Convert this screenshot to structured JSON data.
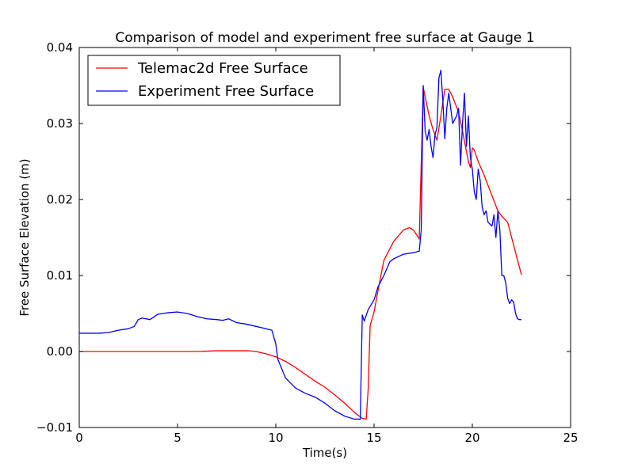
{
  "chart_data": {
    "type": "line",
    "title": "Comparison of model and experiment free surface at Gauge 1",
    "xlabel": "Time(s)",
    "ylabel": "Free Surface Elevation (m)",
    "xlim": [
      0,
      25
    ],
    "ylim": [
      -0.01,
      0.04
    ],
    "x_ticks": [
      0,
      5,
      10,
      15,
      20,
      25
    ],
    "x_tick_labels": [
      "0",
      "5",
      "10",
      "15",
      "20",
      "25"
    ],
    "y_ticks": [
      -0.01,
      0.0,
      0.01,
      0.02,
      0.03,
      0.04
    ],
    "y_tick_labels": [
      "−0.01",
      "0.00",
      "0.01",
      "0.02",
      "0.03",
      "0.04"
    ],
    "grid": false,
    "legend_position": "top-left",
    "series": [
      {
        "name": "Telemac2d Free Surface",
        "color": "#ff0000",
        "points": [
          [
            0.0,
            0.0
          ],
          [
            2.0,
            0.0
          ],
          [
            4.0,
            0.0
          ],
          [
            6.0,
            0.0
          ],
          [
            7.0,
            0.0001
          ],
          [
            8.0,
            0.0001
          ],
          [
            8.6,
            0.0001
          ],
          [
            9.0,
            0.0
          ],
          [
            9.5,
            -0.0003
          ],
          [
            10.0,
            -0.0007
          ],
          [
            10.5,
            -0.0013
          ],
          [
            11.0,
            -0.0021
          ],
          [
            11.5,
            -0.003
          ],
          [
            12.0,
            -0.0039
          ],
          [
            12.5,
            -0.0047
          ],
          [
            13.0,
            -0.0057
          ],
          [
            13.5,
            -0.0068
          ],
          [
            14.0,
            -0.008
          ],
          [
            14.4,
            -0.0088
          ],
          [
            14.6,
            -0.0089
          ],
          [
            14.7,
            -0.005
          ],
          [
            14.8,
            0.0034
          ],
          [
            15.0,
            0.0052
          ],
          [
            15.2,
            0.008
          ],
          [
            15.5,
            0.012
          ],
          [
            16.0,
            0.0145
          ],
          [
            16.5,
            0.016
          ],
          [
            16.8,
            0.0163
          ],
          [
            17.0,
            0.016
          ],
          [
            17.3,
            0.0148
          ],
          [
            17.5,
            0.0348
          ],
          [
            17.8,
            0.031
          ],
          [
            18.0,
            0.0292
          ],
          [
            18.2,
            0.0278
          ],
          [
            18.4,
            0.031
          ],
          [
            18.6,
            0.0345
          ],
          [
            18.8,
            0.0345
          ],
          [
            19.0,
            0.0335
          ],
          [
            19.3,
            0.0315
          ],
          [
            19.5,
            0.029
          ],
          [
            19.8,
            0.025
          ],
          [
            19.9,
            0.0242
          ],
          [
            20.0,
            0.0268
          ],
          [
            20.1,
            0.0265
          ],
          [
            20.3,
            0.025
          ],
          [
            20.6,
            0.0232
          ],
          [
            21.0,
            0.0205
          ],
          [
            21.3,
            0.0185
          ],
          [
            21.5,
            0.0178
          ],
          [
            21.8,
            0.017
          ],
          [
            22.0,
            0.015
          ],
          [
            22.2,
            0.013
          ],
          [
            22.5,
            0.0101
          ]
        ]
      },
      {
        "name": "Experiment Free Surface",
        "color": "#0000ff",
        "points": [
          [
            0.0,
            0.0024
          ],
          [
            1.0,
            0.0024
          ],
          [
            1.5,
            0.0025
          ],
          [
            2.0,
            0.0028
          ],
          [
            2.5,
            0.003
          ],
          [
            2.8,
            0.0033
          ],
          [
            3.0,
            0.0042
          ],
          [
            3.2,
            0.0044
          ],
          [
            3.6,
            0.0042
          ],
          [
            4.0,
            0.0049
          ],
          [
            4.5,
            0.0051
          ],
          [
            5.0,
            0.0052
          ],
          [
            5.5,
            0.005
          ],
          [
            6.0,
            0.0046
          ],
          [
            6.5,
            0.0043
          ],
          [
            7.0,
            0.0042
          ],
          [
            7.3,
            0.0041
          ],
          [
            7.6,
            0.0043
          ],
          [
            8.0,
            0.0038
          ],
          [
            8.5,
            0.0036
          ],
          [
            9.0,
            0.0033
          ],
          [
            9.5,
            0.003
          ],
          [
            9.8,
            0.0028
          ],
          [
            10.0,
            0.001
          ],
          [
            10.1,
            -0.001
          ],
          [
            10.5,
            -0.0035
          ],
          [
            11.0,
            -0.0048
          ],
          [
            11.5,
            -0.0055
          ],
          [
            12.0,
            -0.006
          ],
          [
            12.5,
            -0.0068
          ],
          [
            13.0,
            -0.0078
          ],
          [
            13.5,
            -0.0085
          ],
          [
            14.0,
            -0.0089
          ],
          [
            14.3,
            -0.0089
          ],
          [
            14.4,
            0.0048
          ],
          [
            14.5,
            0.004
          ],
          [
            14.7,
            0.0055
          ],
          [
            15.0,
            0.0068
          ],
          [
            15.2,
            0.0085
          ],
          [
            15.5,
            0.01
          ],
          [
            15.8,
            0.0118
          ],
          [
            16.0,
            0.0122
          ],
          [
            16.5,
            0.0128
          ],
          [
            17.0,
            0.013
          ],
          [
            17.3,
            0.0132
          ],
          [
            17.4,
            0.016
          ],
          [
            17.5,
            0.035
          ],
          [
            17.6,
            0.029
          ],
          [
            17.7,
            0.0278
          ],
          [
            17.8,
            0.0292
          ],
          [
            17.9,
            0.027
          ],
          [
            18.0,
            0.0255
          ],
          [
            18.1,
            0.0285
          ],
          [
            18.2,
            0.0295
          ],
          [
            18.3,
            0.036
          ],
          [
            18.4,
            0.037
          ],
          [
            18.5,
            0.033
          ],
          [
            18.6,
            0.028
          ],
          [
            18.7,
            0.032
          ],
          [
            18.8,
            0.034
          ],
          [
            18.9,
            0.032
          ],
          [
            19.0,
            0.03
          ],
          [
            19.2,
            0.031
          ],
          [
            19.3,
            0.032
          ],
          [
            19.4,
            0.0245
          ],
          [
            19.5,
            0.03
          ],
          [
            19.6,
            0.034
          ],
          [
            19.7,
            0.027
          ],
          [
            19.8,
            0.031
          ],
          [
            19.9,
            0.0255
          ],
          [
            20.0,
            0.024
          ],
          [
            20.1,
            0.021
          ],
          [
            20.2,
            0.02
          ],
          [
            20.3,
            0.024
          ],
          [
            20.4,
            0.0225
          ],
          [
            20.5,
            0.019
          ],
          [
            20.6,
            0.018
          ],
          [
            20.7,
            0.0185
          ],
          [
            20.8,
            0.017
          ],
          [
            21.0,
            0.0165
          ],
          [
            21.1,
            0.018
          ],
          [
            21.2,
            0.015
          ],
          [
            21.3,
            0.0185
          ],
          [
            21.4,
            0.016
          ],
          [
            21.5,
            0.01
          ],
          [
            21.6,
            0.01
          ],
          [
            21.7,
            0.009
          ],
          [
            21.8,
            0.007
          ],
          [
            21.9,
            0.0063
          ],
          [
            22.0,
            0.0068
          ],
          [
            22.1,
            0.0065
          ],
          [
            22.2,
            0.005
          ],
          [
            22.3,
            0.0043
          ],
          [
            22.4,
            0.0042
          ],
          [
            22.5,
            0.0042
          ]
        ]
      }
    ]
  }
}
